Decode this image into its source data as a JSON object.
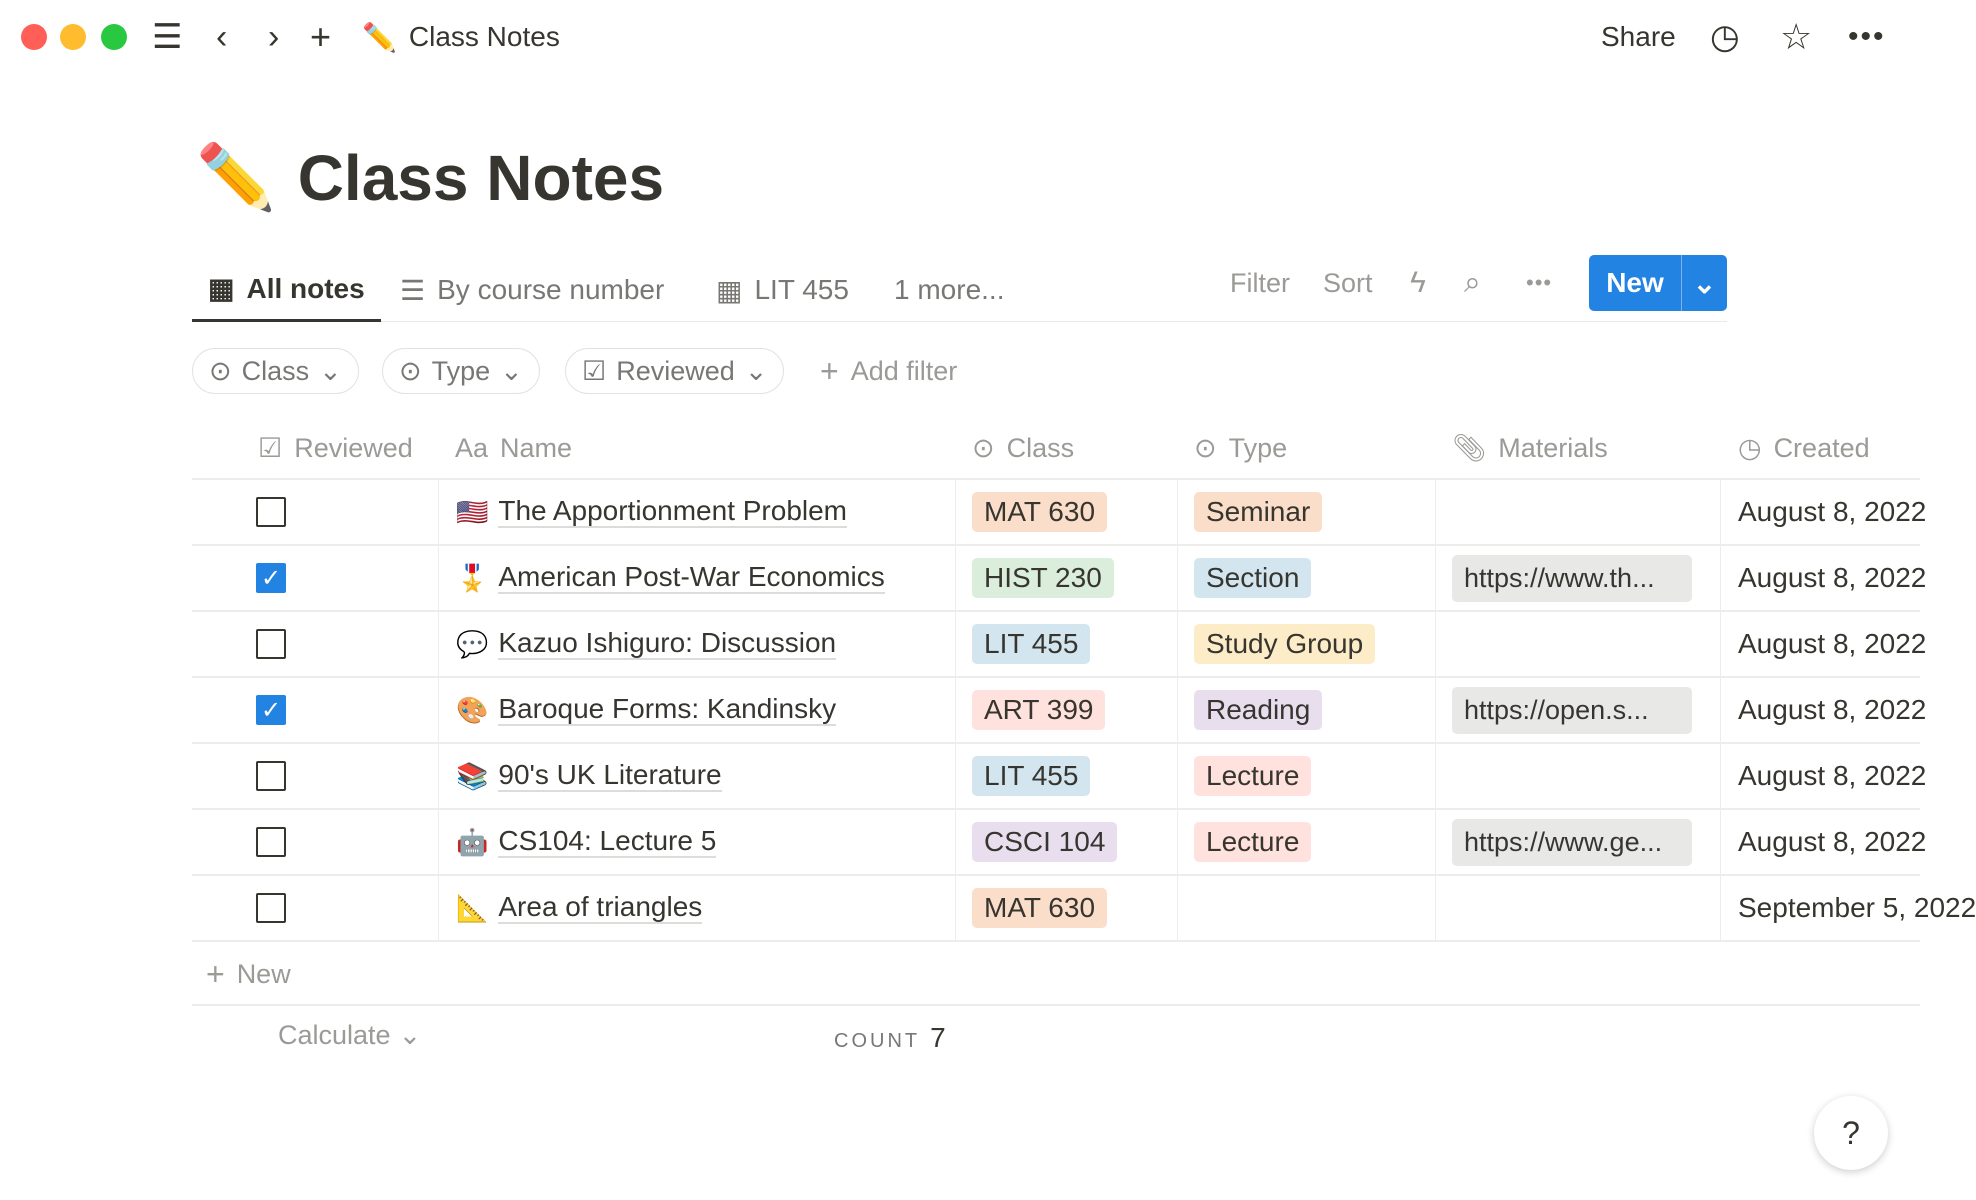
{
  "window": {
    "title": "Class Notes",
    "share": "Share"
  },
  "page": {
    "title": "Class Notes",
    "icon": "✏️"
  },
  "tabs": [
    {
      "label": "All notes",
      "icon": "table-icon"
    },
    {
      "label": "By course number",
      "icon": "list-icon"
    },
    {
      "label": "LIT 455",
      "icon": "table-icon"
    },
    {
      "label": "1 more..."
    }
  ],
  "toolbar": {
    "filter": "Filter",
    "sort": "Sort",
    "new": "New"
  },
  "filters": [
    "Class",
    "Type",
    "Reviewed"
  ],
  "add_filter": "Add filter",
  "columns": {
    "reviewed": "Reviewed",
    "name_prefix": "Aa",
    "name": "Name",
    "class": "Class",
    "type": "Type",
    "materials": "Materials",
    "created": "Created"
  },
  "rows": [
    {
      "reviewed": false,
      "emoji": "🇺🇸",
      "name": "The Apportionment Problem",
      "class": "MAT 630",
      "class_color": "#fadec9",
      "type": "Seminar",
      "type_color": "#fadec9",
      "materials": "",
      "created": "August 8, 2022"
    },
    {
      "reviewed": true,
      "emoji": "🎖️",
      "name": "American Post-War Economics",
      "class": "HIST 230",
      "class_color": "#dbeddb",
      "type": "Section",
      "type_color": "#d3e5ef",
      "materials": "https://www.th...",
      "created": "August 8, 2022"
    },
    {
      "reviewed": false,
      "emoji": "💬",
      "name": "Kazuo Ishiguro: Discussion",
      "class": "LIT 455",
      "class_color": "#d3e5ef",
      "type": "Study Group",
      "type_color": "#fdecc8",
      "materials": "",
      "created": "August 8, 2022"
    },
    {
      "reviewed": true,
      "emoji": "🎨",
      "name": "Baroque Forms: Kandinsky",
      "class": "ART 399",
      "class_color": "#ffe2dd",
      "type": "Reading",
      "type_color": "#e8deee",
      "materials": "https://open.s...",
      "created": "August 8, 2022"
    },
    {
      "reviewed": false,
      "emoji": "📚",
      "name": "90's UK Literature",
      "class": "LIT 455",
      "class_color": "#d3e5ef",
      "type": "Lecture",
      "type_color": "#ffe2dd",
      "materials": "",
      "created": "August 8, 2022"
    },
    {
      "reviewed": false,
      "emoji": "🤖",
      "name": "CS104: Lecture 5",
      "class": "CSCI 104",
      "class_color": "#e8deee",
      "type": "Lecture",
      "type_color": "#ffe2dd",
      "materials": "https://www.ge...",
      "created": "August 8, 2022"
    },
    {
      "reviewed": false,
      "emoji": "📐",
      "name": "Area of triangles",
      "class": "MAT 630",
      "class_color": "#fadec9",
      "type": "",
      "type_color": "",
      "materials": "",
      "created": "September 5, 2022"
    }
  ],
  "footer": {
    "new": "New",
    "calculate": "Calculate",
    "count_label": "COUNT",
    "count": "7"
  },
  "help": "?"
}
